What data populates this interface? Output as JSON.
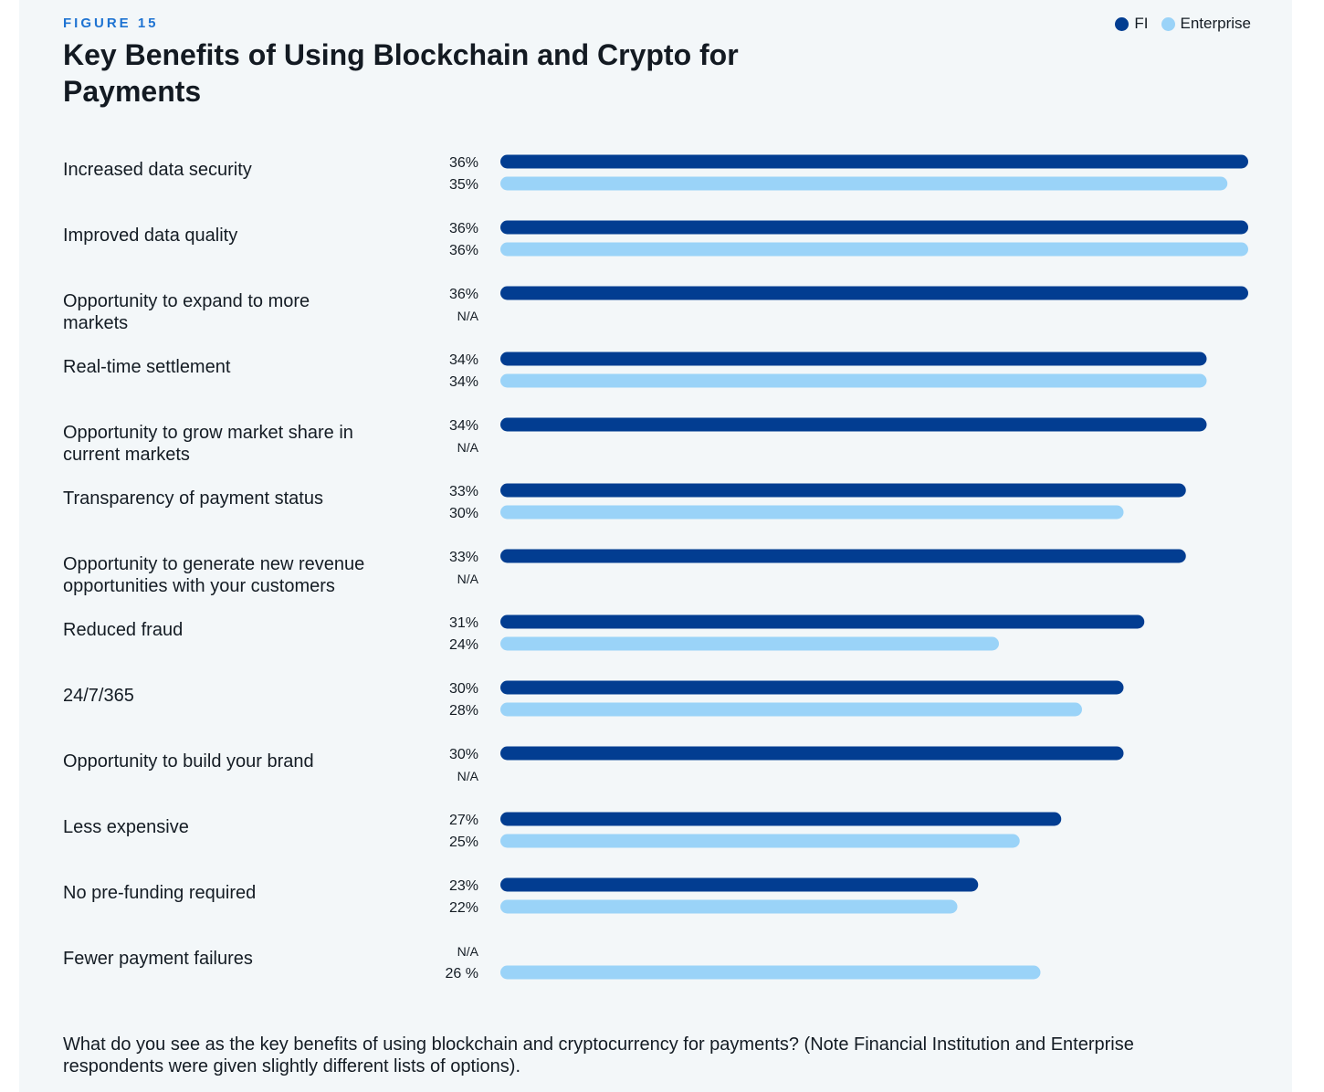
{
  "figure_label": "FIGURE 15",
  "title": "Key Benefits of Using Blockchain and Crypto for Payments",
  "footnote": "What do you see as the key benefits of using blockchain and cryptocurrency for payments? (Note Financial Institution and Enterprise respondents were given slightly different lists of options).",
  "colors": {
    "fi": "#023d91",
    "enterprise": "#9ad3f8",
    "panel_background": "#f3f7f9",
    "figure_label": "#1e73d2"
  },
  "chart_data": {
    "type": "bar",
    "orientation": "horizontal",
    "title": "Key Benefits of Using Blockchain and Crypto for Payments",
    "xlabel": "",
    "ylabel": "",
    "xlim": [
      0,
      36
    ],
    "grid": false,
    "legend_position": "top-right",
    "unit": "%",
    "categories": [
      [
        "Increased data security"
      ],
      [
        "Improved data quality"
      ],
      [
        "Opportunity to expand to more",
        "markets"
      ],
      [
        "Real-time settlement"
      ],
      [
        "Opportunity to grow market share in",
        "current markets"
      ],
      [
        "Transparency of payment status"
      ],
      [
        "Opportunity to generate new revenue",
        "opportunities with your customers"
      ],
      [
        "Reduced fraud"
      ],
      [
        "24/7/365"
      ],
      [
        "Opportunity to build your brand"
      ],
      [
        "Less expensive"
      ],
      [
        "No pre-funding required"
      ],
      [
        "Fewer payment failures"
      ]
    ],
    "series": [
      {
        "name": "FI",
        "color": "#023d91",
        "values": [
          36,
          36,
          36,
          34,
          34,
          33,
          33,
          31,
          30,
          30,
          27,
          23,
          null
        ],
        "labels": [
          "36%",
          "36%",
          "36%",
          "34%",
          "34%",
          "33%",
          "33%",
          "31%",
          "30%",
          "30%",
          "27%",
          "23%",
          "N/A"
        ]
      },
      {
        "name": "Enterprise",
        "color": "#9ad3f8",
        "values": [
          35,
          36,
          null,
          34,
          null,
          30,
          null,
          24,
          28,
          null,
          25,
          22,
          26
        ],
        "labels": [
          "35%",
          "36%",
          "N/A",
          "34%",
          "N/A",
          "30%",
          "N/A",
          "24%",
          "28%",
          "N/A",
          "25%",
          "22%",
          "26 %"
        ]
      }
    ]
  }
}
